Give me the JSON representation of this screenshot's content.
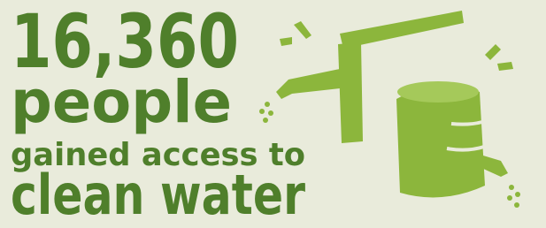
{
  "headline": {
    "number": "16,360",
    "line1": "people",
    "line2": "gained access to",
    "line3": "clean water"
  }
}
